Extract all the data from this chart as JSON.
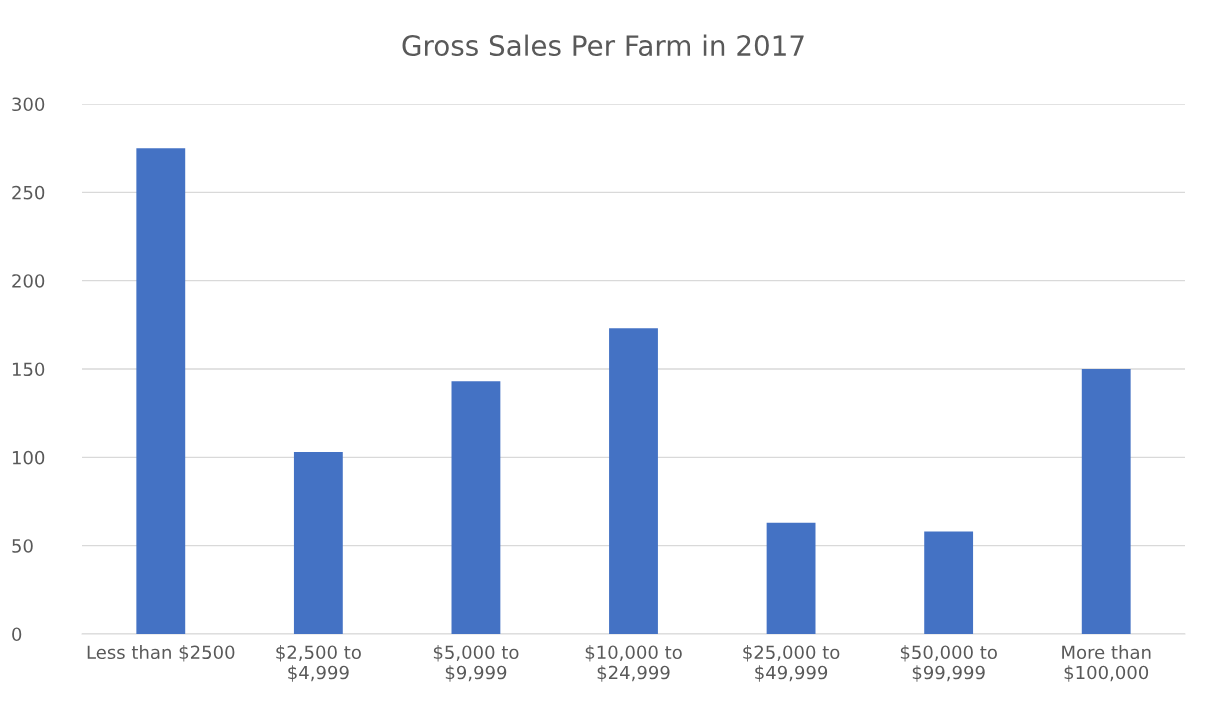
{
  "chart_data": {
    "type": "bar",
    "title": "Gross Sales Per Farm in 2017",
    "categories": [
      "Less than $2500",
      "$2,500 to\n$4,999",
      "$5,000 to\n$9,999",
      "$10,000 to\n$24,999",
      "$25,000 to\n$49,999",
      "$50,000 to\n$99,999",
      "More than\n$100,000"
    ],
    "values": [
      275,
      103,
      143,
      173,
      63,
      58,
      150
    ],
    "color": "#4472c4",
    "ylim": [
      0,
      300
    ],
    "yticks": [
      0,
      50,
      100,
      150,
      200,
      250,
      300
    ],
    "grid": "y"
  }
}
